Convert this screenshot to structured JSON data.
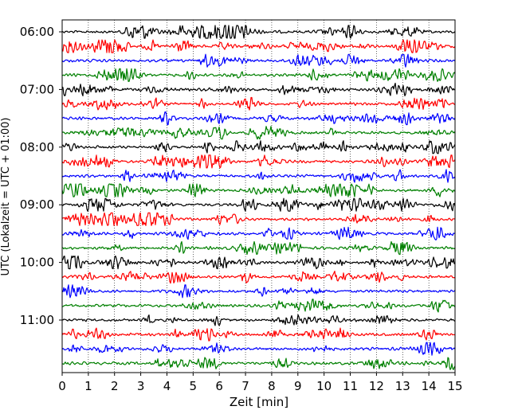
{
  "chart_data": {
    "type": "line",
    "title": "",
    "xlabel": "Zeit  [min]",
    "ylabel": "UTC (Lokalzeit = UTC + 01:00)",
    "xlim": [
      0,
      15
    ],
    "xticks": [
      0,
      1,
      2,
      3,
      4,
      5,
      6,
      7,
      8,
      9,
      10,
      11,
      12,
      13,
      14,
      15
    ],
    "xtick_labels": [
      "0",
      "1",
      "2",
      "3",
      "4",
      "5",
      "6",
      "7",
      "8",
      "9",
      "10",
      "11",
      "12",
      "13",
      "14",
      "15"
    ],
    "ytick_labels": [
      "06:00",
      "07:00",
      "08:00",
      "09:00",
      "10:00",
      "11:00"
    ],
    "grid": "vertical dotted",
    "series_colors": [
      "#000000",
      "#ff0000",
      "#0000ff",
      "#008000"
    ],
    "trace_count": 24,
    "trace_interval_min": 15,
    "start_time": "06:00"
  }
}
